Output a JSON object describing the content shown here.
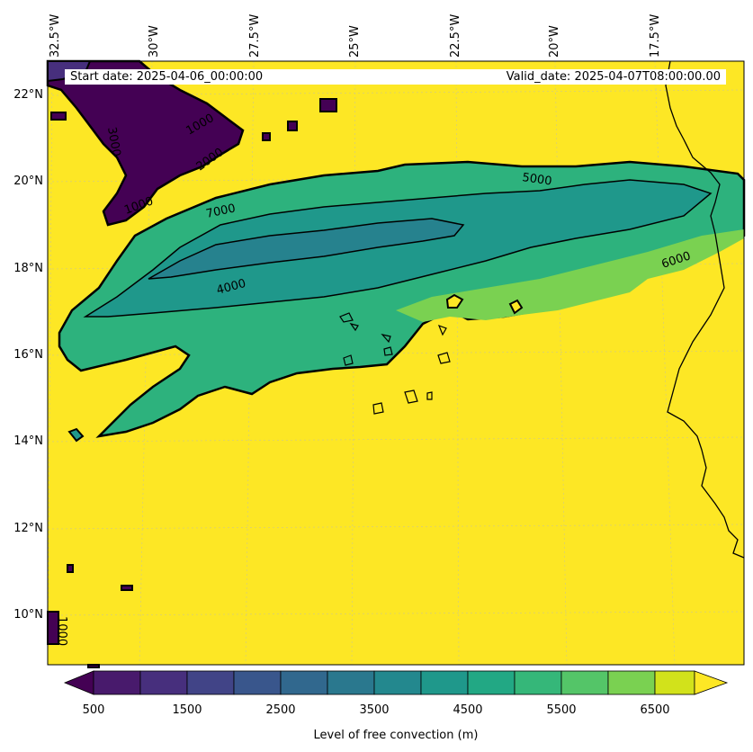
{
  "header": {
    "start_date": "Start date: 2025-04-06_00:00:00",
    "valid_date": "Valid_date: 2025-04-07T08:00:00.00"
  },
  "axes": {
    "lon_labels": [
      "32.5°W",
      "30°W",
      "27.5°W",
      "25°W",
      "22.5°W",
      "20°W",
      "17.5°W"
    ],
    "lat_labels": [
      "22°N",
      "20°N",
      "18°N",
      "16°N",
      "14°N",
      "12°N",
      "10°N"
    ]
  },
  "contour_labels": [
    "5000",
    "7000",
    "4000",
    "6000",
    "3000",
    "1000",
    "2000",
    "1000",
    "1000"
  ],
  "colorbar": {
    "title": "Level of free convection (m)",
    "tick_labels": [
      "500",
      "1500",
      "2500",
      "3500",
      "4500",
      "5500",
      "6500"
    ],
    "colors": [
      "#440154",
      "#481a6c",
      "#472f7d",
      "#414487",
      "#39568c",
      "#31688e",
      "#2a788e",
      "#23888e",
      "#1f988b",
      "#22a884",
      "#35b779",
      "#54c568",
      "#7ad151",
      "#a5db36",
      "#d2e21b",
      "#fde725"
    ],
    "extend": "both"
  },
  "map": {
    "background_color": "#fde725",
    "coastline_color": "#000000",
    "gridlines": true
  }
}
